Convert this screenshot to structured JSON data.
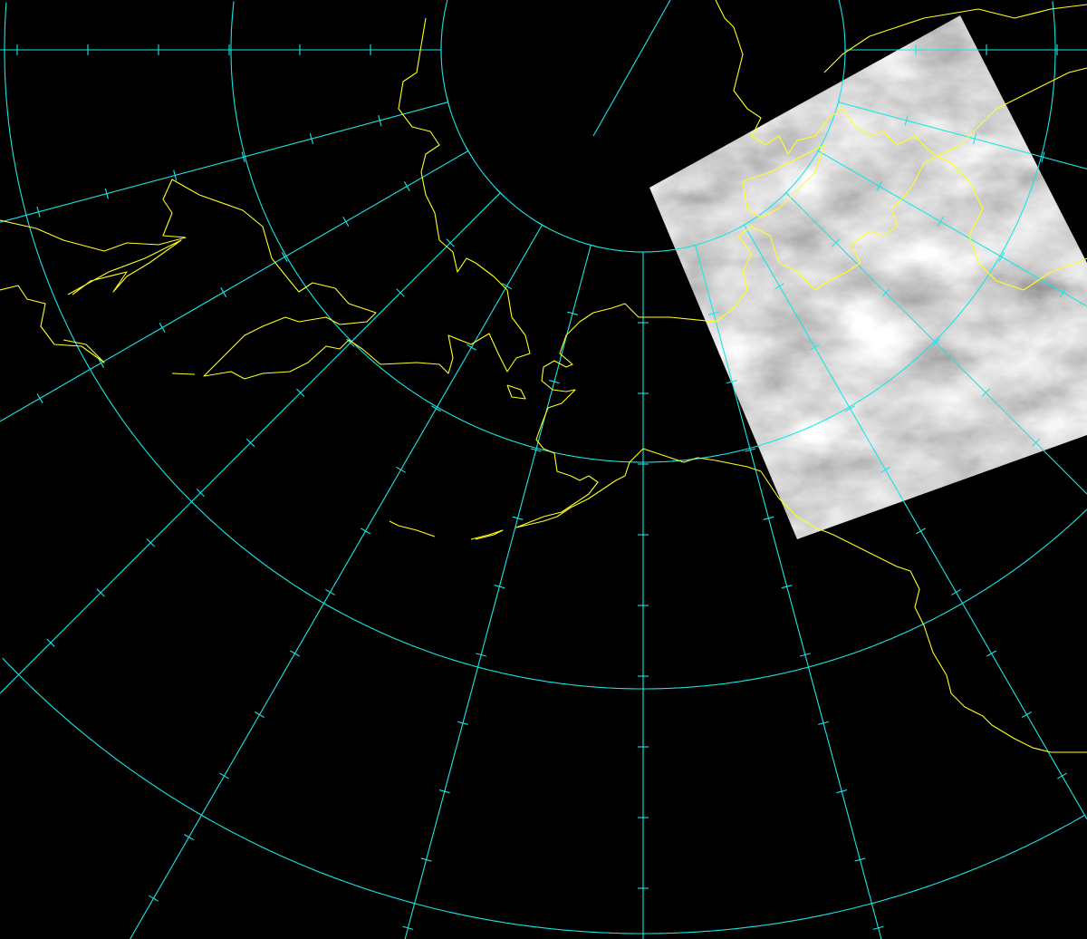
{
  "map": {
    "projection": "polar-stereographic",
    "background_color": "#000000",
    "grid_color": "#19e6e6",
    "coastline_color": "#ffff1e",
    "imagery": "satellite-infrared-grayscale",
    "graticule_spacing_longitude_deg": 15
  }
}
